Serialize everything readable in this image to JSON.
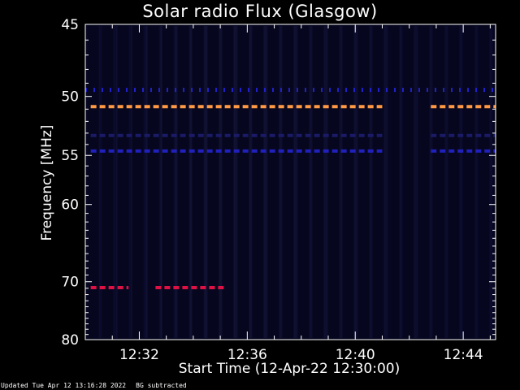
{
  "chart_data": {
    "type": "heatmap",
    "title": "Solar radio Flux (Glasgow)",
    "ylabel": "Frequency [MHz]",
    "xlabel": "Start Time (12-Apr-22 12:30:00)",
    "yticks": [
      45,
      50,
      55,
      60,
      70,
      80
    ],
    "xticks": [
      "12:32",
      "12:36",
      "12:40",
      "12:44"
    ],
    "x_range_min": [
      0,
      15.2
    ],
    "y_range_mhz": [
      45,
      80
    ],
    "xtick_minutes": [
      2,
      6,
      10,
      14
    ],
    "bands": [
      {
        "freq_mhz": 49.5,
        "start_min": 0,
        "end_min": 15.2,
        "color": "#2222cc",
        "style": "dotted"
      },
      {
        "freq_mhz": 50.8,
        "start_min": 0.2,
        "end_min": 11.0,
        "color": "#ff9944",
        "style": "dashed"
      },
      {
        "freq_mhz": 50.8,
        "start_min": 12.8,
        "end_min": 15.2,
        "color": "#ff9944",
        "style": "dashed"
      },
      {
        "freq_mhz": 53.2,
        "start_min": 0.2,
        "end_min": 11.0,
        "color": "#1a1a66",
        "style": "dashed"
      },
      {
        "freq_mhz": 53.2,
        "start_min": 12.8,
        "end_min": 15.2,
        "color": "#1a1a66",
        "style": "dashed"
      },
      {
        "freq_mhz": 54.6,
        "start_min": 0.2,
        "end_min": 11.0,
        "color": "#2020bb",
        "style": "dashed"
      },
      {
        "freq_mhz": 54.6,
        "start_min": 12.8,
        "end_min": 15.2,
        "color": "#2020bb",
        "style": "dashed"
      },
      {
        "freq_mhz": 70.9,
        "start_min": 0.2,
        "end_min": 1.6,
        "color": "#dd1144",
        "style": "dashed"
      },
      {
        "freq_mhz": 70.9,
        "start_min": 2.6,
        "end_min": 5.2,
        "color": "#dd1144",
        "style": "dashed"
      }
    ]
  },
  "colors": {
    "background": "#000000",
    "plot_background": "#06061e",
    "axis": "#ffffff"
  },
  "footer": {
    "updated": "Updated Tue Apr 12 13:16:28 2022",
    "bg_note": "BG subtracted"
  }
}
